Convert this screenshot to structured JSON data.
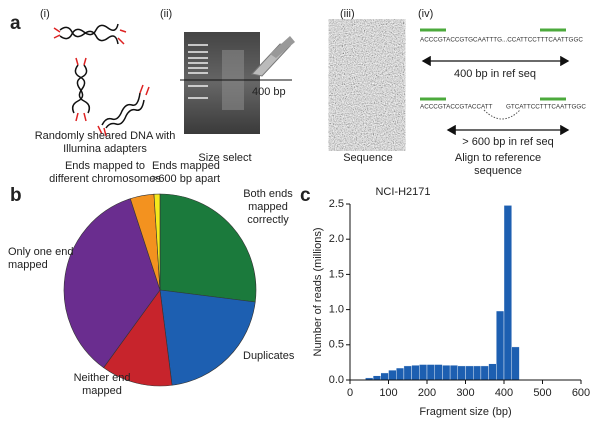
{
  "panel_a": {
    "label": "a",
    "steps": [
      {
        "number": "(i)",
        "caption": "Randomly sheared DNA with Illumina adapters"
      },
      {
        "number": "(ii)",
        "caption": "Size select",
        "marker": "400 bp"
      },
      {
        "number": "(iii)",
        "caption": "Sequence"
      },
      {
        "number": "(iv)",
        "caption": "Align to reference sequence",
        "alignments": [
          {
            "read": "ACCCGTACCGTGCAATTTG...CCATTCCTTTCAATTGGC",
            "span": "400 bp in ref seq"
          },
          {
            "read_start": "ACCCGTACCGTACCATT",
            "read_end": "GTCATTCCTTTCAATTGGC",
            "span": "> 600 bp in ref seq"
          }
        ]
      }
    ]
  },
  "chart_data": [
    {
      "panel_label": "b",
      "type": "pie",
      "categories": [
        "Both ends mapped correctly",
        "Duplicates",
        "Neither end mapped",
        "Only one end mapped",
        "Ends mapped to different chromosomes",
        "Ends mapped >600 bp apart"
      ],
      "values": [
        27,
        21,
        12,
        35,
        4,
        1
      ],
      "colors": [
        "#1b7a3c",
        "#1d5fb1",
        "#c7242c",
        "#6a2d8f",
        "#f3921f",
        "#f6e81c"
      ]
    },
    {
      "panel_label": "c",
      "type": "histogram",
      "title": "NCI-H2171",
      "x_label": "Fragment size (bp)",
      "y_label": "Number of reads (millions)",
      "bins": [
        40,
        60,
        80,
        100,
        120,
        140,
        160,
        180,
        200,
        220,
        240,
        260,
        280,
        300,
        320,
        340,
        360,
        380,
        400,
        420,
        440
      ],
      "values": [
        0.03,
        0.06,
        0.1,
        0.14,
        0.17,
        0.2,
        0.21,
        0.22,
        0.22,
        0.22,
        0.21,
        0.21,
        0.2,
        0.2,
        0.2,
        0.2,
        0.23,
        0.98,
        2.48,
        0.47
      ],
      "color": "#1d5fb1",
      "xlim": [
        0,
        600
      ],
      "xticks": [
        0,
        100,
        200,
        300,
        400,
        500,
        600
      ],
      "ylim": [
        0,
        2.5
      ],
      "yticks": [
        {
          "value": 0,
          "label": "0.0"
        },
        0.5,
        {
          "value": 1,
          "label": "1.0"
        },
        1.5,
        {
          "value": 2,
          "label": "2.0"
        },
        2.5
      ]
    }
  ]
}
